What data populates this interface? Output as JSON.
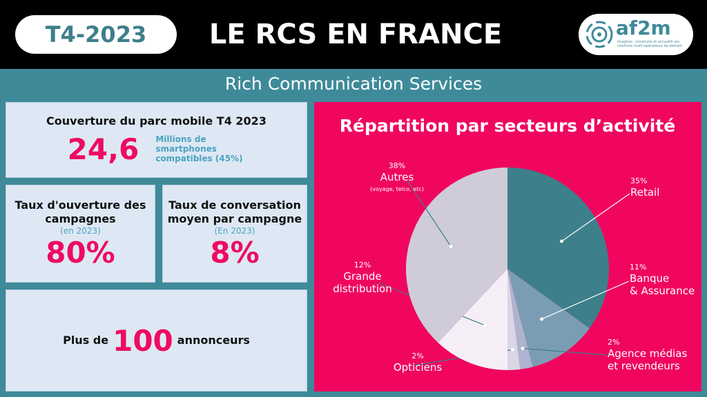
{
  "header": {
    "badge": "T4-2023",
    "title": "LE RCS EN FRANCE",
    "logo": "af2m",
    "logo_tagline": "Imaginer, construire et accueillir les solutions multi-opérateurs de demain"
  },
  "subtitle": "Rich Communication Services",
  "coverage": {
    "title": "Couverture du parc mobile T4 2023",
    "value": "24,6",
    "note": "Millions de smartphones compatibles (45%)"
  },
  "open_rate": {
    "title": "Taux d'ouverture des campagnes",
    "period": "(en 2023)",
    "value": "80%"
  },
  "conversation_rate": {
    "title": "Taux de conversation moyen par campagne",
    "period": "(En 2023)",
    "value": "8%"
  },
  "advertisers": {
    "prefix": "Plus de",
    "value": "100",
    "suffix": "annonceurs"
  },
  "chart_data": {
    "type": "pie",
    "title": "Répartition par secteurs d’activité",
    "categories": [
      "Retail",
      "Banque\n& Assurance",
      "Agence médias\net revendeurs",
      "Opticiens",
      "Grande\ndistribution",
      "Autres"
    ],
    "values": [
      35,
      11,
      2,
      2,
      12,
      38
    ],
    "value_labels": [
      "35%",
      "11%",
      "2%",
      "2%",
      "12%",
      "38%"
    ],
    "colors": [
      "#3d7f8a",
      "#7b9db3",
      "#aeb4cf",
      "#d9d6e6",
      "#f6eef7",
      "#cfcbd9"
    ],
    "annotation": "(voyage, telco, etc)"
  }
}
